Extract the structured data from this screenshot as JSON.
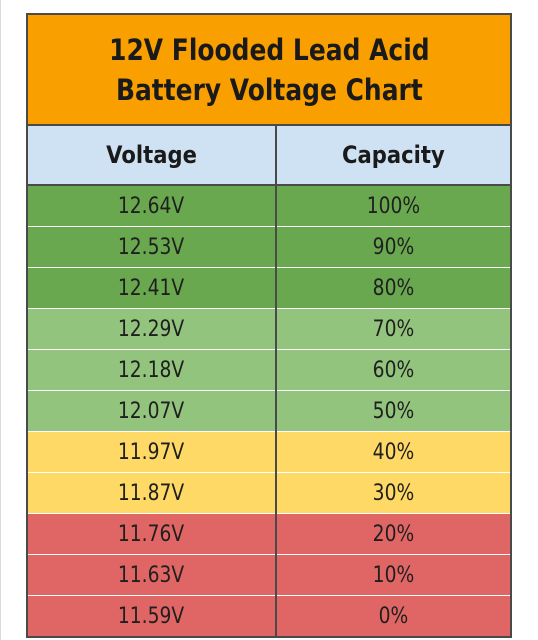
{
  "colors": {
    "title_bg": "#f9a000",
    "header_bg": "#cfe2f3",
    "dark_green": "#6aa84f",
    "light_green": "#93c47d",
    "yellow": "#ffd966",
    "red": "#e06666",
    "border": "#4a4a4a"
  },
  "chart_data": {
    "type": "table",
    "title_lines": [
      "12V Flooded Lead Acid",
      "Battery Voltage Chart"
    ],
    "columns": [
      "Voltage",
      "Capacity"
    ],
    "rows": [
      {
        "voltage": "12.64V",
        "capacity": "100%",
        "band": "dark_green"
      },
      {
        "voltage": "12.53V",
        "capacity": "90%",
        "band": "dark_green"
      },
      {
        "voltage": "12.41V",
        "capacity": "80%",
        "band": "dark_green"
      },
      {
        "voltage": "12.29V",
        "capacity": "70%",
        "band": "light_green"
      },
      {
        "voltage": "12.18V",
        "capacity": "60%",
        "band": "light_green"
      },
      {
        "voltage": "12.07V",
        "capacity": "50%",
        "band": "light_green"
      },
      {
        "voltage": "11.97V",
        "capacity": "40%",
        "band": "yellow"
      },
      {
        "voltage": "11.87V",
        "capacity": "30%",
        "band": "yellow"
      },
      {
        "voltage": "11.76V",
        "capacity": "20%",
        "band": "red"
      },
      {
        "voltage": "11.63V",
        "capacity": "10%",
        "band": "red"
      },
      {
        "voltage": "11.59V",
        "capacity": "0%",
        "band": "red"
      }
    ]
  }
}
